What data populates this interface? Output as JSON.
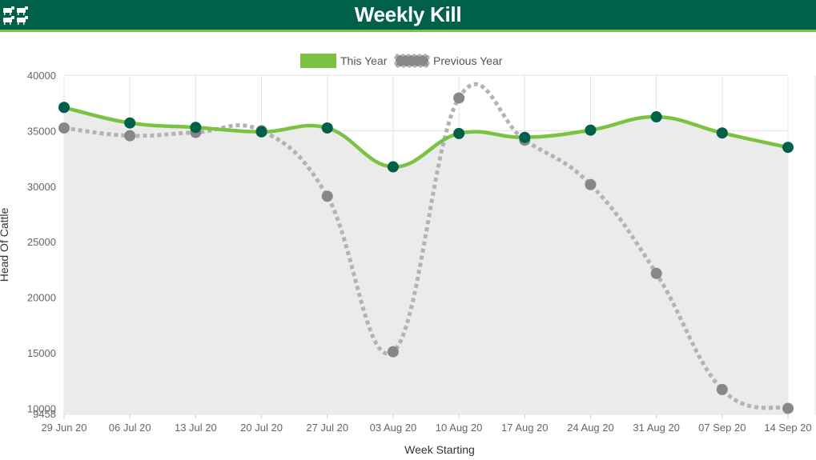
{
  "header": {
    "title": "Weekly Kill",
    "logo_icon": "cattle-herd-icon"
  },
  "colors": {
    "header_bg": "#00604a",
    "header_accent": "#7cc242",
    "this_year_line": "#7cc242",
    "this_year_point": "#00604a",
    "previous_year_line": "#b3b3b3",
    "previous_year_point": "#878787",
    "area_fill": "#ebebeb",
    "grid": "#e3e3e3"
  },
  "chart_data": {
    "type": "line",
    "categories": [
      "29 Jun 20",
      "06 Jul 20",
      "13 Jul 20",
      "20 Jul 20",
      "27 Jul 20",
      "03 Aug 20",
      "10 Aug 20",
      "17 Aug 20",
      "24 Aug 20",
      "31 Aug 20",
      "07 Sep 20",
      "14 Sep 20"
    ],
    "series": [
      {
        "name": "This Year",
        "style": "solid",
        "values": [
          37100,
          35700,
          35300,
          34900,
          35250,
          31750,
          34750,
          34400,
          35050,
          36250,
          34800,
          33500
        ]
      },
      {
        "name": "Previous Year",
        "style": "dotted",
        "values": [
          35250,
          34550,
          34850,
          35000,
          29100,
          15100,
          37950,
          34150,
          30150,
          22150,
          11700,
          10000
        ]
      }
    ],
    "xlabel": "Week Starting",
    "ylabel": "Head Of Cattle",
    "yticks": [
      10000,
      15000,
      20000,
      25000,
      30000,
      35000,
      40000
    ],
    "ymin_label": "9458",
    "ylim": [
      9458,
      40000
    ],
    "grid": true,
    "legend_position": "top-center"
  }
}
